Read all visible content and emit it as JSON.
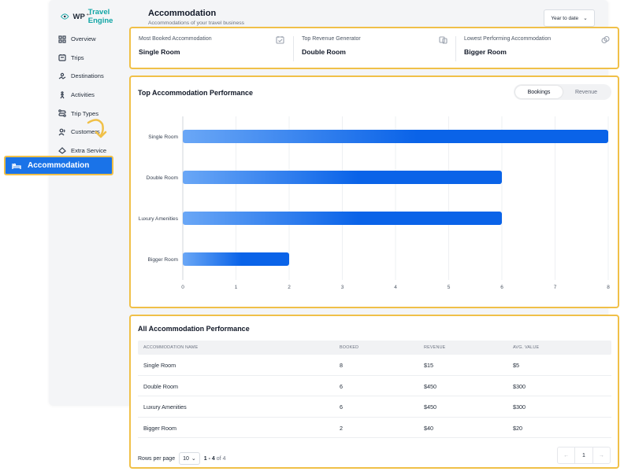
{
  "brand": {
    "name_plain": "WP",
    "name_accent": "Travel Engine"
  },
  "nav": [
    {
      "label": "Overview",
      "icon": "grid-icon"
    },
    {
      "label": "Trips",
      "icon": "trips-icon"
    },
    {
      "label": "Destinations",
      "icon": "map-icon"
    },
    {
      "label": "Activities",
      "icon": "activity-icon"
    },
    {
      "label": "Trip Types",
      "icon": "route-icon"
    },
    {
      "label": "Customers",
      "icon": "users-icon"
    },
    {
      "label": "Extra Service",
      "icon": "service-icon"
    }
  ],
  "active_nav": {
    "label": "Accommodation",
    "icon": "bed-icon"
  },
  "header": {
    "title": "Accommodation",
    "subtitle": "Accommodations of your travel business",
    "range": "Year to date"
  },
  "stats": [
    {
      "label": "Most Booked Accommodation",
      "value": "Single Room",
      "icon": "calendar-check-icon"
    },
    {
      "label": "Top Revenue Generator",
      "value": "Double Room",
      "icon": "money-icon"
    },
    {
      "label": "Lowest Performing Accommodation",
      "value": "Bigger Room",
      "icon": "link-icon"
    }
  ],
  "performance": {
    "title": "Top Accommodation Performance",
    "toggle": [
      "Bookings",
      "Revenue"
    ],
    "active_toggle": "Bookings"
  },
  "chart_data": {
    "type": "bar",
    "orientation": "horizontal",
    "categories": [
      "Single Room",
      "Double Room",
      "Luxury Amenities",
      "Bigger Room"
    ],
    "values": [
      8,
      6,
      6,
      2
    ],
    "xlim": [
      0,
      8
    ],
    "xticks": [
      0,
      1,
      2,
      3,
      4,
      5,
      6,
      7,
      8
    ],
    "grid": "vertical",
    "colors": {
      "bar_start": "#6aa7f6",
      "bar_end": "#0a63e8"
    }
  },
  "table": {
    "title": "All Accommodation Performance",
    "columns": [
      "ACCOMMODATION NAME",
      "BOOKED",
      "REVENUE",
      "AVG. VALUE"
    ],
    "rows": [
      [
        "Single Room",
        "8",
        "$15",
        "$5"
      ],
      [
        "Double Room",
        "6",
        "$450",
        "$300"
      ],
      [
        "Luxury Amenities",
        "6",
        "$450",
        "$300"
      ],
      [
        "Bigger Room",
        "2",
        "$40",
        "$20"
      ]
    ],
    "rows_per_page_label": "Rows per page",
    "rows_per_page": "10",
    "range_text": "1 - 4",
    "range_total": "of 4",
    "page": "1"
  },
  "colors": {
    "accent": "#1a73e8",
    "highlight": "#f0c048",
    "brand": "#10a5a5"
  }
}
